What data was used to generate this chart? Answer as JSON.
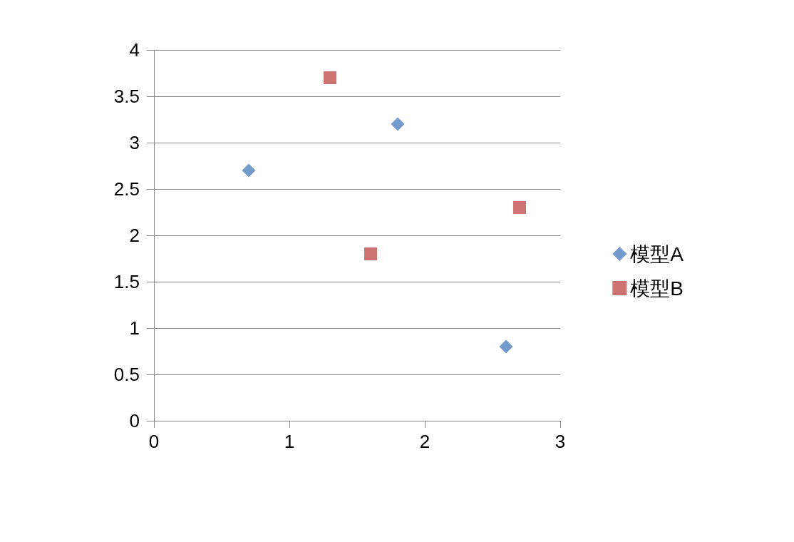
{
  "chart_data": {
    "type": "scatter",
    "series": [
      {
        "name": "模型A",
        "color": "#4f81bd",
        "marker": "diamond",
        "x": [
          0.7,
          1.8,
          2.6
        ],
        "values": [
          2.7,
          3.2,
          0.8
        ]
      },
      {
        "name": "模型B",
        "color": "#c0504d",
        "marker": "square",
        "x": [
          1.3,
          1.6,
          2.7
        ],
        "values": [
          3.7,
          1.8,
          2.3
        ]
      }
    ],
    "xlim": [
      0,
      3
    ],
    "xticks": [
      0,
      1,
      2,
      3
    ],
    "ylim": [
      0,
      4
    ],
    "yticks": [
      0,
      0.5,
      1,
      1.5,
      2,
      2.5,
      3,
      3.5,
      4
    ],
    "grid": "y",
    "legend": "right"
  }
}
